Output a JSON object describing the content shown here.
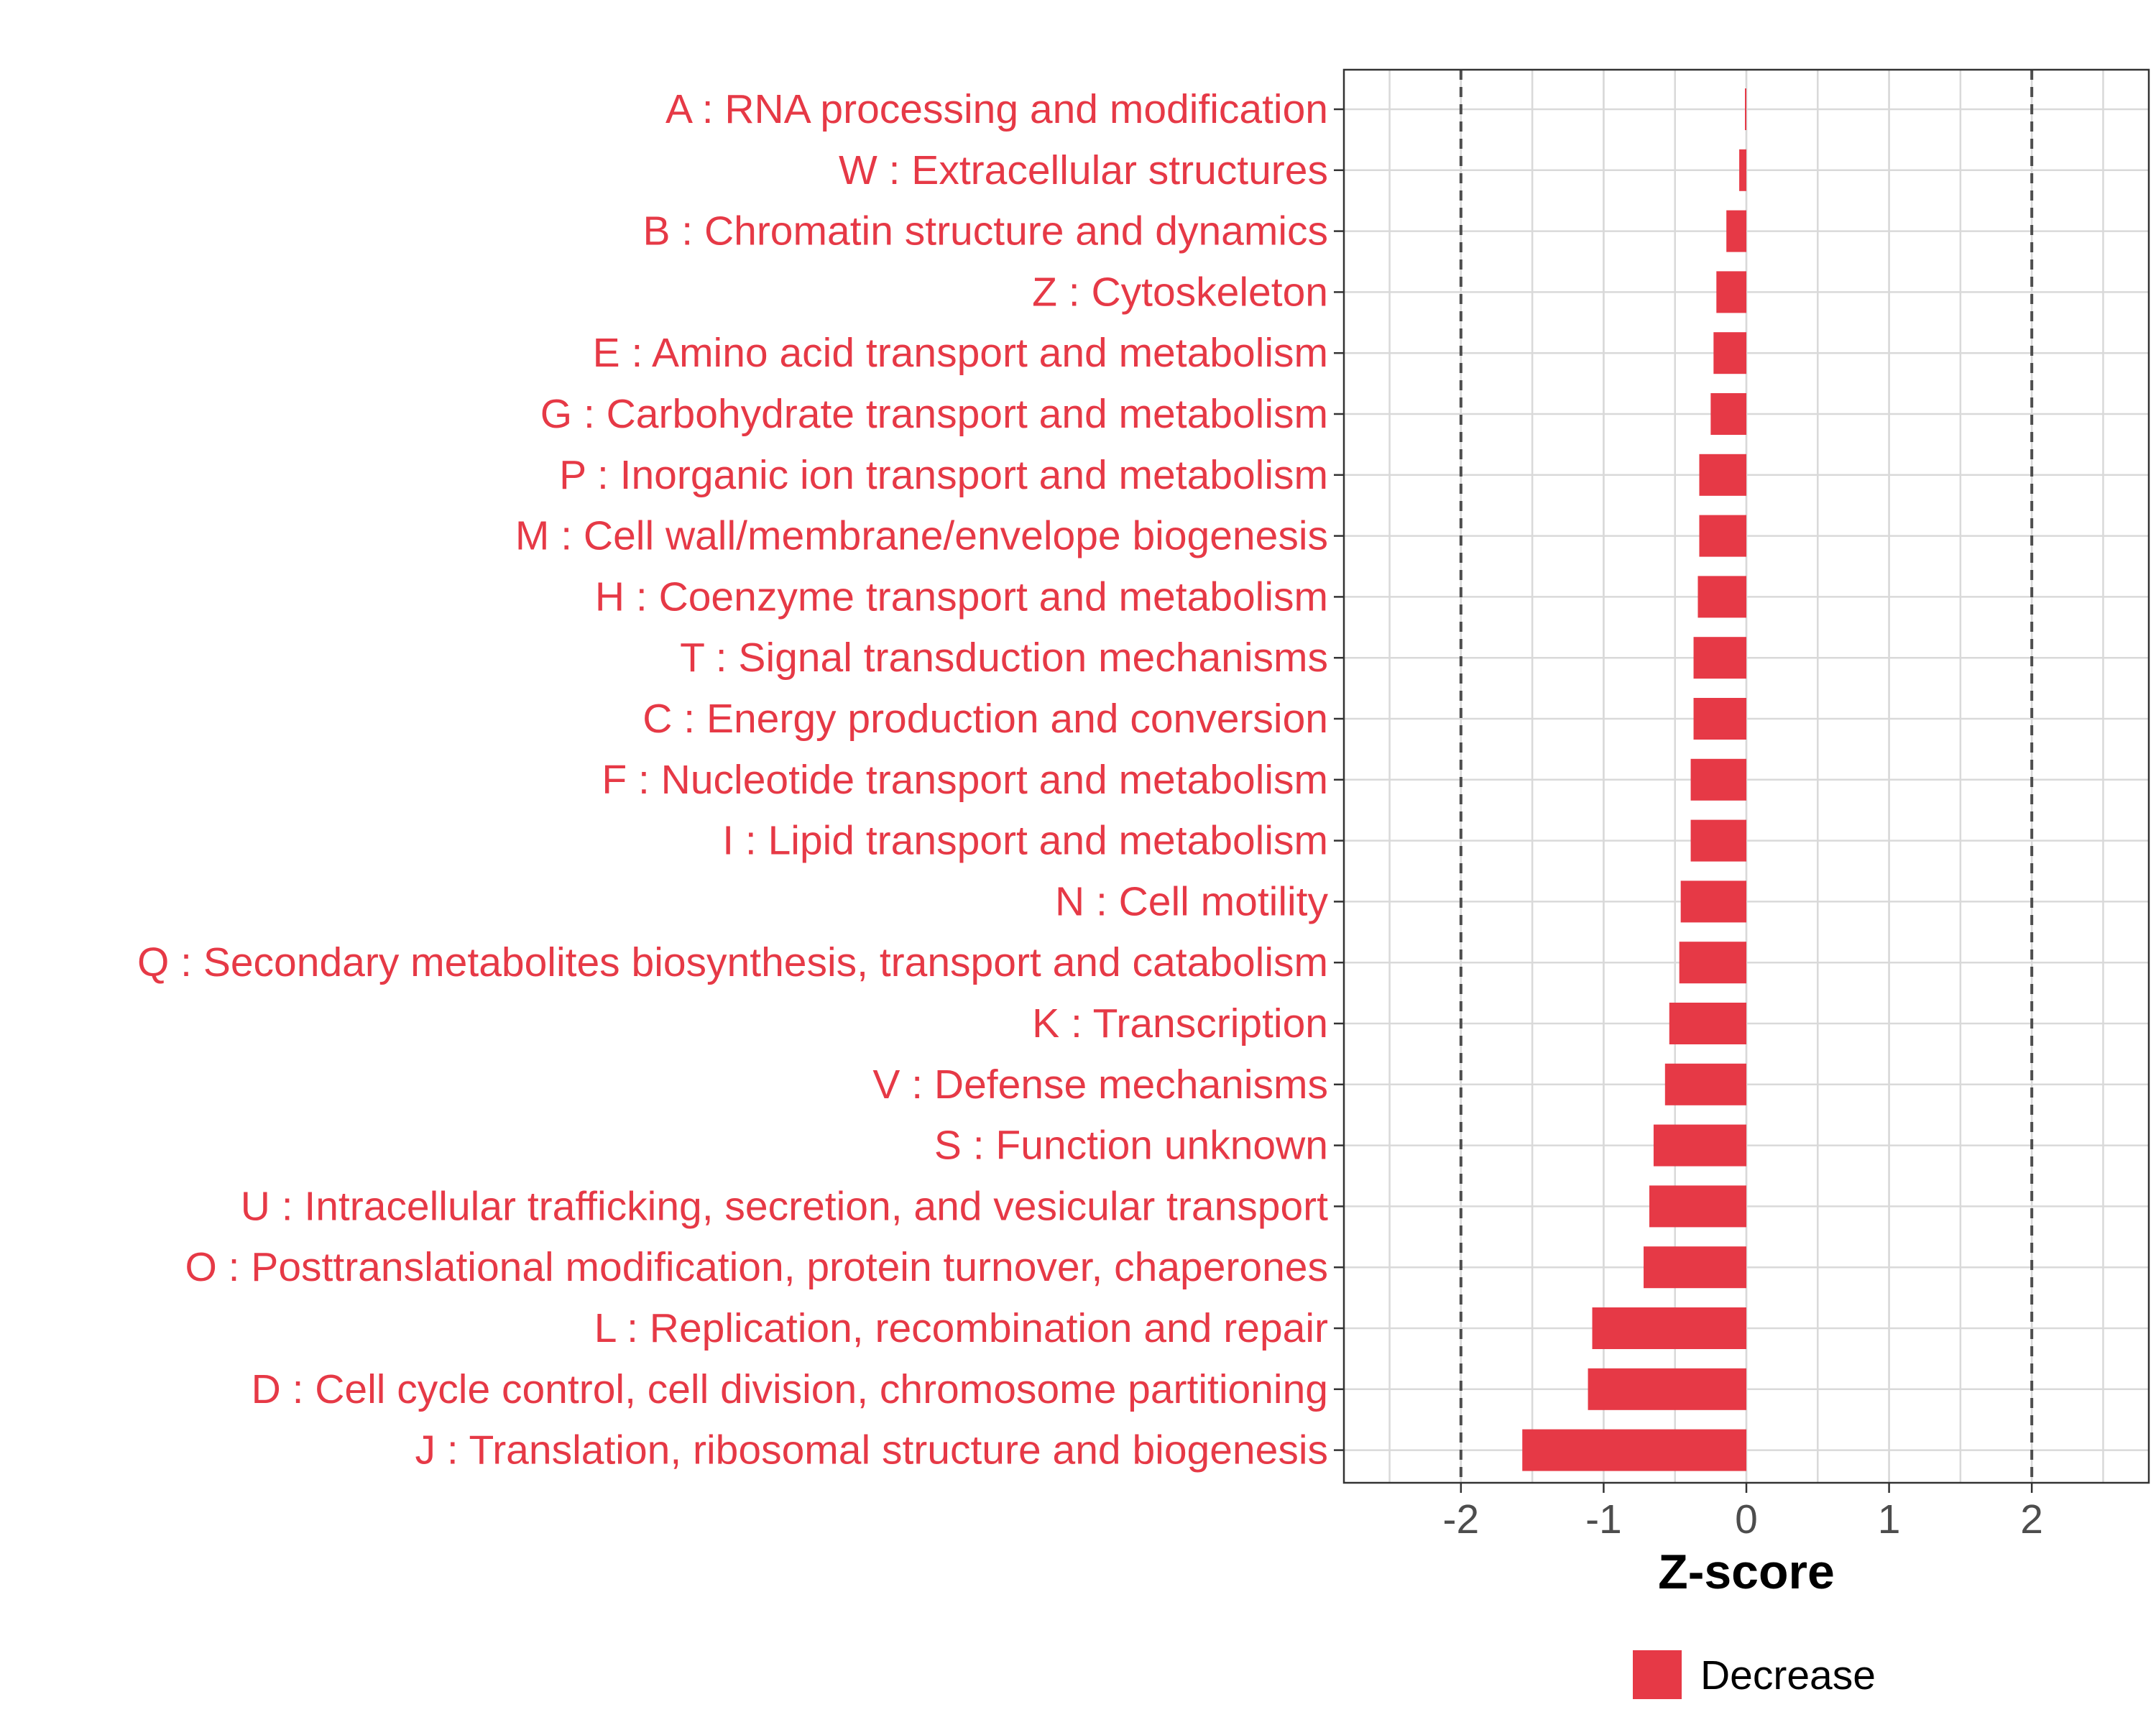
{
  "chart_data": {
    "type": "bar",
    "orientation": "horizontal",
    "categories": [
      "A : RNA processing and modification",
      "W : Extracellular structures",
      "B : Chromatin structure and dynamics",
      "Z : Cytoskeleton",
      "E : Amino acid transport and metabolism",
      "G : Carbohydrate transport and metabolism",
      "P : Inorganic ion transport and metabolism",
      "M : Cell wall/membrane/envelope biogenesis",
      "H : Coenzyme transport and metabolism",
      "T : Signal transduction mechanisms",
      "C : Energy production and conversion",
      "F : Nucleotide transport and metabolism",
      "I : Lipid transport and metabolism",
      "N : Cell motility",
      "Q : Secondary metabolites biosynthesis, transport and catabolism",
      "K : Transcription",
      "V : Defense mechanisms",
      "S : Function unknown",
      "U : Intracellular trafficking, secretion, and vesicular transport",
      "O : Posttranslational modification, protein turnover, chaperones",
      "L : Replication, recombination and repair",
      "D : Cell cycle control, cell division, chromosome partitioning",
      "J : Translation, ribosomal structure and biogenesis"
    ],
    "values": [
      -0.01,
      -0.05,
      -0.14,
      -0.21,
      -0.23,
      -0.25,
      -0.33,
      -0.33,
      -0.34,
      -0.37,
      -0.37,
      -0.39,
      -0.39,
      -0.46,
      -0.47,
      -0.54,
      -0.57,
      -0.65,
      -0.68,
      -0.72,
      -1.08,
      -1.11,
      -1.57
    ],
    "xlabel": "Z-score",
    "ylabel": "",
    "xlim": [
      -2.82,
      2.82
    ],
    "xticks": [
      "-2",
      "-1",
      "0",
      "1",
      "2"
    ],
    "xtick_values": [
      -2,
      -1,
      0,
      1,
      2
    ],
    "reference_lines": [
      -2,
      2
    ],
    "grid": true,
    "legend": {
      "position": "bottom",
      "entries": [
        {
          "label": "Decrease",
          "color": "#E63946"
        }
      ]
    },
    "colors": {
      "bar": "#E63946",
      "label": "#E63946",
      "grid": "#d9d9d9",
      "refline": "#4d4d4d"
    }
  }
}
